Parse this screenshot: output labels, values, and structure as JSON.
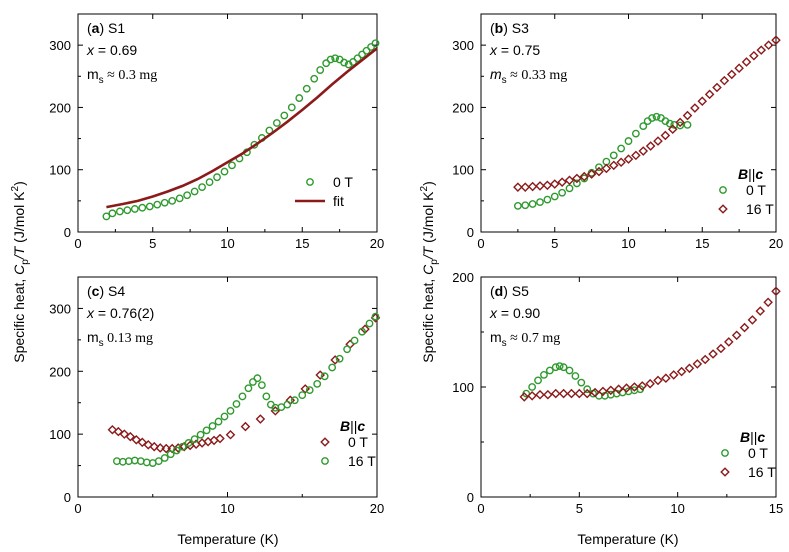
{
  "figure": {
    "ylabel_main": "Specific heat, ",
    "ylabel_var": "C",
    "ylabel_sub": "p",
    "ylabel_rest": "/T (J/mol K",
    "ylabel_exp": "2",
    "ylabel_close": ")",
    "xlabel": "Temperature (K)"
  },
  "colors": {
    "green": "#2e9a2e",
    "darkred": "#8b1a1a",
    "axis": "#000000"
  },
  "chart_data": [
    {
      "type": "scatter",
      "panel": "(a)",
      "sample": "S1",
      "info": [
        "x = 0.69",
        "m_s ≈ 0.3 mg"
      ],
      "xlim": [
        0,
        20
      ],
      "ylim": [
        0,
        350
      ],
      "xticks": [
        0,
        5,
        10,
        15,
        20
      ],
      "yticks": [
        0,
        100,
        200,
        300
      ],
      "legend": {
        "title": "",
        "entries": [
          "0 T",
          "fit"
        ]
      },
      "series": [
        {
          "name": "0 T",
          "marker": "circle",
          "color": "#2e9a2e",
          "x": [
            1.9,
            2.3,
            2.8,
            3.3,
            3.8,
            4.3,
            4.8,
            5.3,
            5.8,
            6.3,
            6.8,
            7.3,
            7.8,
            8.3,
            8.8,
            9.3,
            9.8,
            10.3,
            10.8,
            11.3,
            11.8,
            12.3,
            12.8,
            13.3,
            13.8,
            14.3,
            14.8,
            15.3,
            15.8,
            16.2,
            16.6,
            16.9,
            17.2,
            17.5,
            17.8,
            18.1,
            18.4,
            18.7,
            19.0,
            19.3,
            19.6,
            19.9
          ],
          "y": [
            25,
            30,
            33,
            35,
            37,
            39,
            41,
            44,
            47,
            50,
            54,
            59,
            65,
            72,
            80,
            88,
            97,
            107,
            118,
            128,
            140,
            151,
            163,
            175,
            187,
            200,
            215,
            230,
            246,
            260,
            271,
            277,
            279,
            277,
            272,
            269,
            273,
            279,
            285,
            291,
            297,
            303
          ]
        },
        {
          "name": "fit",
          "marker": "line",
          "color": "#8b1a1a",
          "x": [
            1.9,
            3,
            4,
            5,
            6,
            7,
            8,
            9,
            10,
            11,
            12,
            13,
            14,
            15,
            16,
            17,
            18,
            19,
            20
          ],
          "y": [
            40,
            45,
            50,
            57,
            65,
            74,
            85,
            98,
            112,
            126,
            142,
            159,
            177,
            196,
            216,
            237,
            257,
            276,
            295
          ]
        }
      ]
    },
    {
      "type": "scatter",
      "panel": "(b)",
      "sample": "S3",
      "info": [
        "x = 0.75",
        "m_s ≈ 0.33 mg"
      ],
      "xlim": [
        0,
        20
      ],
      "ylim": [
        0,
        350
      ],
      "xticks": [
        0,
        5,
        10,
        15,
        20
      ],
      "yticks": [
        0,
        100,
        200,
        300
      ],
      "legend": {
        "title": "B||c",
        "entries": [
          "0 T",
          "16 T"
        ]
      },
      "series": [
        {
          "name": "0 T",
          "marker": "circle",
          "color": "#2e9a2e",
          "x": [
            2.5,
            3.0,
            3.5,
            4.0,
            4.5,
            5.0,
            5.5,
            6.0,
            6.5,
            7.0,
            7.5,
            8.0,
            8.5,
            9.0,
            9.5,
            10.0,
            10.5,
            11.0,
            11.3,
            11.6,
            11.9,
            12.2,
            12.5,
            12.8,
            13.1,
            13.5,
            14.0
          ],
          "y": [
            42,
            43,
            45,
            48,
            52,
            57,
            63,
            70,
            78,
            86,
            95,
            104,
            113,
            123,
            134,
            146,
            158,
            170,
            178,
            183,
            185,
            183,
            178,
            174,
            172,
            171,
            172
          ]
        },
        {
          "name": "16 T",
          "marker": "diamond",
          "color": "#8b1a1a",
          "x": [
            2.5,
            3.0,
            3.5,
            4.0,
            4.5,
            5.0,
            5.5,
            6.0,
            6.5,
            7.0,
            7.5,
            8.0,
            8.5,
            9.0,
            9.5,
            10.0,
            10.5,
            11.0,
            11.5,
            12.0,
            12.5,
            13.0,
            13.5,
            14.0,
            14.5,
            15.0,
            15.5,
            16.0,
            16.5,
            17.0,
            17.5,
            18.0,
            18.5,
            19.0,
            19.5,
            20.0
          ],
          "y": [
            72,
            72,
            73,
            74,
            75,
            77,
            80,
            83,
            86,
            89,
            93,
            97,
            102,
            107,
            112,
            117,
            123,
            130,
            138,
            146,
            155,
            165,
            176,
            187,
            199,
            210,
            221,
            232,
            243,
            253,
            263,
            273,
            283,
            292,
            300,
            308
          ]
        }
      ]
    },
    {
      "type": "scatter",
      "panel": "(c)",
      "sample": "S4",
      "info": [
        "x = 0.76(2)",
        "m_s    0.13 mg"
      ],
      "xlim": [
        0,
        20
      ],
      "ylim": [
        0,
        350
      ],
      "xticks": [
        0,
        10,
        20
      ],
      "yticks": [
        0,
        100,
        200,
        300
      ],
      "legend": {
        "title": "B||c",
        "entries": [
          "0 T",
          "16 T"
        ]
      },
      "series": [
        {
          "name": "0 T",
          "marker": "diamond",
          "color": "#8b1a1a",
          "x": [
            2.3,
            2.7,
            3.1,
            3.5,
            3.9,
            4.3,
            4.7,
            5.1,
            5.5,
            5.9,
            6.3,
            6.7,
            7.1,
            7.5,
            7.9,
            8.3,
            8.7,
            9.1,
            9.5,
            10.2,
            11.2,
            12.2,
            13.2,
            14.2,
            15.2,
            16.2,
            17.2,
            18.2,
            19.2,
            19.9
          ],
          "y": [
            107,
            104,
            100,
            96,
            91,
            87,
            83,
            80,
            78,
            77,
            77,
            78,
            80,
            82,
            84,
            86,
            88,
            90,
            93,
            99,
            112,
            124,
            137,
            154,
            172,
            194,
            218,
            243,
            267,
            285
          ]
        },
        {
          "name": "16 T",
          "marker": "circle",
          "color": "#2e9a2e",
          "x": [
            2.6,
            3.0,
            3.4,
            3.8,
            4.2,
            4.6,
            5.0,
            5.4,
            5.8,
            6.2,
            6.6,
            7.0,
            7.4,
            7.8,
            8.2,
            8.6,
            9.0,
            9.4,
            9.8,
            10.2,
            10.6,
            11.0,
            11.4,
            11.7,
            12.0,
            12.3,
            12.6,
            12.9,
            13.2,
            13.6,
            14.0,
            14.5,
            15.0,
            15.5,
            16.0,
            16.5,
            17.0,
            17.5,
            18.0,
            18.5,
            19.0,
            19.5,
            19.9
          ],
          "y": [
            57,
            56,
            57,
            58,
            57,
            55,
            54,
            57,
            62,
            68,
            74,
            80,
            86,
            92,
            99,
            106,
            113,
            120,
            128,
            137,
            148,
            160,
            173,
            183,
            189,
            178,
            160,
            147,
            142,
            143,
            147,
            154,
            162,
            170,
            180,
            192,
            206,
            220,
            235,
            249,
            263,
            276,
            287
          ]
        }
      ]
    },
    {
      "type": "scatter",
      "panel": "(d)",
      "sample": "S5",
      "info": [
        "x = 0.90",
        "m_s ≈ 0.7 mg"
      ],
      "xlim": [
        0,
        15
      ],
      "ylim": [
        0,
        200
      ],
      "xticks": [
        0,
        5,
        10,
        15
      ],
      "yticks": [
        0,
        100,
        200
      ],
      "legend": {
        "title": "B||c",
        "entries": [
          "0 T",
          "16 T"
        ]
      },
      "series": [
        {
          "name": "0 T",
          "marker": "circle",
          "color": "#2e9a2e",
          "x": [
            2.3,
            2.6,
            2.9,
            3.2,
            3.5,
            3.8,
            4.0,
            4.2,
            4.5,
            4.8,
            5.1,
            5.4,
            5.7,
            6.0,
            6.3,
            6.6,
            6.9,
            7.2,
            7.5,
            7.8,
            8.1
          ],
          "y": [
            94,
            100,
            106,
            111,
            115,
            118,
            119,
            118,
            115,
            110,
            104,
            98,
            94,
            92,
            92,
            93,
            94,
            95,
            96,
            97,
            98
          ]
        },
        {
          "name": "16 T",
          "marker": "diamond",
          "color": "#8b1a1a",
          "x": [
            2.2,
            2.6,
            3.0,
            3.4,
            3.8,
            4.2,
            4.6,
            5.0,
            5.4,
            5.8,
            6.2,
            6.6,
            7.0,
            7.4,
            7.8,
            8.2,
            8.6,
            9.0,
            9.4,
            9.8,
            10.2,
            10.6,
            11.0,
            11.4,
            11.8,
            12.2,
            12.6,
            13.0,
            13.4,
            13.8,
            14.2,
            14.6,
            15.0
          ],
          "y": [
            91,
            92,
            93,
            93,
            94,
            94,
            94,
            94,
            94,
            95,
            96,
            97,
            98,
            99,
            100,
            101,
            103,
            106,
            108,
            111,
            114,
            117,
            121,
            125,
            130,
            135,
            141,
            147,
            154,
            161,
            169,
            177,
            187
          ]
        }
      ]
    }
  ]
}
